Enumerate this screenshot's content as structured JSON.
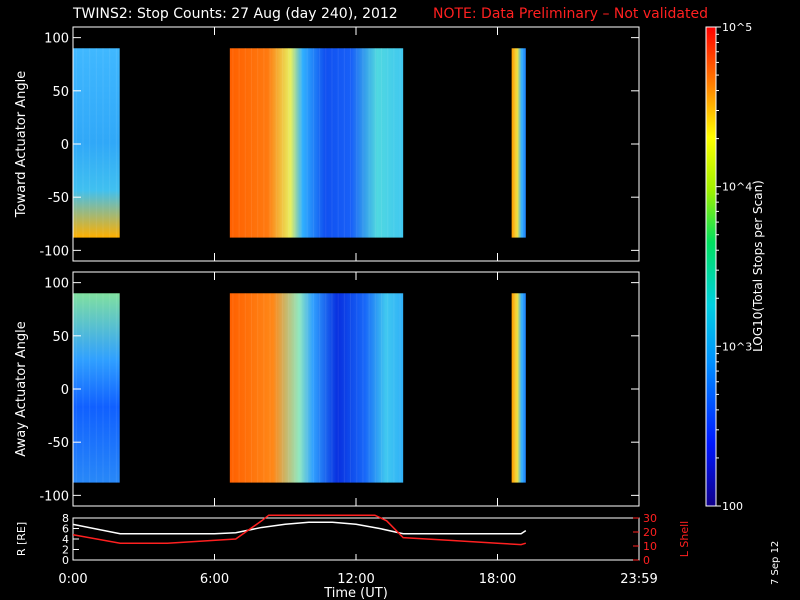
{
  "title": {
    "main": "TWINS2: Stop Counts: 27 Aug (day 240), 2012",
    "note": "NOTE: Data Preliminary – Not validated",
    "note_color": "#ff2020"
  },
  "stamp": "7 Sep 12",
  "time_axis": {
    "label": "Time (UT)",
    "ticks": [
      "0:00",
      "6:00",
      "12:00",
      "18:00",
      "23:59"
    ],
    "range_hours": [
      0,
      24
    ]
  },
  "colorbar": {
    "label": "LOG10(Total Stops per Scan)",
    "ticks": [
      "10^5",
      "10^4",
      "10^3",
      "100"
    ],
    "range": [
      100,
      100000
    ],
    "scale": "log",
    "colormap": "rainbow"
  },
  "chart_data": [
    {
      "type": "heatmap",
      "ylabel": "Toward Actuator Angle",
      "ylim": [
        -110,
        110
      ],
      "yticks": [
        "100",
        "50",
        "0",
        "-50",
        "-100"
      ],
      "xlim": [
        0,
        24
      ],
      "data_angle_range": [
        -88,
        90
      ],
      "blocks": [
        {
          "start": 0.0,
          "end": 1.98
        },
        {
          "start": 6.65,
          "end": 14.0
        },
        {
          "start": 18.6,
          "end": 19.2
        }
      ]
    },
    {
      "type": "heatmap",
      "ylabel": "Away Actuator Angle",
      "ylim": [
        -110,
        110
      ],
      "yticks": [
        "100",
        "50",
        "0",
        "-50",
        "-100"
      ],
      "xlim": [
        0,
        24
      ],
      "data_angle_range": [
        -88,
        90
      ],
      "blocks": [
        {
          "start": 0.0,
          "end": 1.98
        },
        {
          "start": 6.65,
          "end": 14.0
        },
        {
          "start": 18.6,
          "end": 19.2
        }
      ]
    },
    {
      "type": "line",
      "ylabel": "R [RE]",
      "y2label": "L Shell",
      "ylim": [
        0,
        8
      ],
      "yticks": [
        "8",
        "6",
        "4",
        "2",
        "0"
      ],
      "y2lim": [
        0,
        30
      ],
      "y2ticks": [
        "30",
        "20",
        "10",
        "0"
      ],
      "series": [
        {
          "color": "#ffffff",
          "axis": "left",
          "x": [
            0,
            2,
            4,
            6,
            6.9,
            8,
            9,
            10,
            11,
            12,
            13,
            14,
            16,
            18,
            19,
            19.2
          ],
          "y": [
            6.8,
            5.0,
            5.0,
            5.0,
            5.2,
            6.2,
            6.8,
            7.2,
            7.2,
            6.8,
            6.0,
            5.0,
            5.0,
            5.0,
            5.0,
            5.6
          ]
        },
        {
          "color": "#ff2020",
          "axis": "right",
          "x": [
            0,
            2,
            4,
            6.9,
            8,
            8.3,
            12.8,
            13.3,
            14,
            16,
            18,
            19,
            19.2
          ],
          "y": [
            18,
            12,
            12,
            15,
            28,
            32,
            32,
            28,
            16,
            14,
            12,
            11,
            12
          ]
        }
      ]
    }
  ]
}
